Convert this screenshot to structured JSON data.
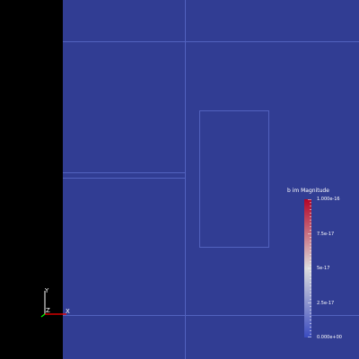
{
  "scalar_bar": {
    "title": "b im Magnitude",
    "tick_labels": [
      "1.000e-16",
      "7.5e-17",
      "5e-17",
      "2.5e-17",
      "0.000e+00"
    ],
    "colormap": "cool-to-warm",
    "colors": {
      "high": "#B40426",
      "mid": "#DDDDDD",
      "low": "#3B4CC0"
    },
    "range": [
      0,
      1e-16
    ]
  },
  "axes_widget": {
    "x_label": "X",
    "y_label": "Y",
    "z_label": "Z",
    "colors": {
      "x": "#FF0000",
      "y": "#FFFFFF",
      "z": "#00FF00"
    }
  },
  "colors": {
    "background_left": "#000000",
    "viewport": "#313D93",
    "wireframe": "#5262BE"
  }
}
